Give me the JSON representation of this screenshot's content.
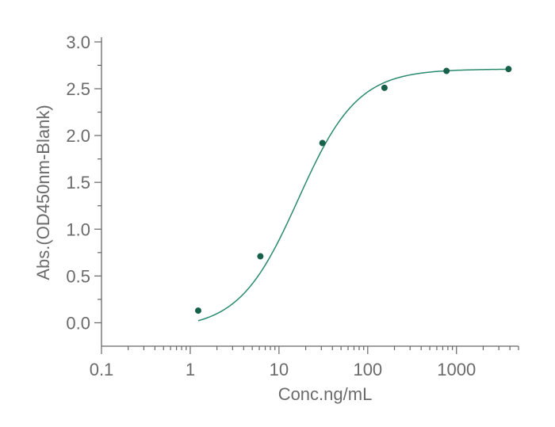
{
  "chart_data": {
    "type": "scatter",
    "xlabel": "Conc.ng/mL",
    "ylabel": "Abs.(OD450nm-Blank)",
    "x_scale": "log",
    "xlim": [
      0.1,
      5000
    ],
    "ylim": [
      -0.25,
      3.05
    ],
    "x_ticks": [
      "0.1",
      "1",
      "10",
      "100",
      "1000"
    ],
    "y_ticks": [
      "0.0",
      "0.5",
      "1.0",
      "1.5",
      "2.0",
      "2.5",
      "3.0"
    ],
    "grid": false,
    "legend": "none",
    "series": [
      {
        "x": [
          1.23,
          6.17,
          30.86,
          154.3,
          771.6,
          3858
        ],
        "y": [
          0.13,
          0.71,
          1.92,
          2.51,
          2.69,
          2.71
        ]
      }
    ],
    "fit_curve": {
      "model": "4PL",
      "bottom": -0.07,
      "top": 2.71,
      "ec50": 16.5,
      "hill": 1.3,
      "x_range": [
        1.23,
        3858
      ]
    },
    "colors": {
      "marker": "#17614a",
      "curve": "#2a8a6e"
    }
  }
}
